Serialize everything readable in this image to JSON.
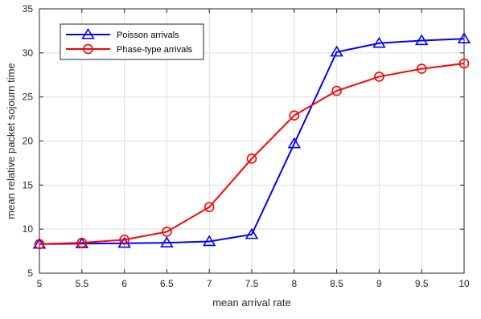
{
  "chart_data": {
    "type": "line",
    "title": "",
    "xlabel": "mean arrival rate",
    "ylabel": "mean relative packet sojourn time",
    "xlim": [
      5,
      10
    ],
    "ylim": [
      5,
      35
    ],
    "x_ticks": [
      5,
      5.5,
      6,
      6.5,
      7,
      7.5,
      8,
      8.5,
      9,
      9.5,
      10
    ],
    "x_tick_labels": [
      "5",
      "5.5",
      "6",
      "6.5",
      "7",
      "7.5",
      "8",
      "8.5",
      "9",
      "9.5",
      "10"
    ],
    "y_ticks": [
      5,
      10,
      15,
      20,
      25,
      30,
      35
    ],
    "y_tick_labels": [
      "5",
      "10",
      "15",
      "20",
      "25",
      "30",
      "35"
    ],
    "grid": true,
    "legend_position": "top-left",
    "x": [
      5,
      5.5,
      6,
      6.5,
      7,
      7.5,
      8,
      8.5,
      9,
      9.5,
      10
    ],
    "series": [
      {
        "name": "Poisson arrivals",
        "color": "#0000ff",
        "marker": "triangle",
        "values": [
          8.3,
          8.35,
          8.4,
          8.45,
          8.6,
          9.4,
          19.7,
          30.1,
          31.1,
          31.4,
          31.6
        ]
      },
      {
        "name": "Phase-type arrivals",
        "color": "#ff0000",
        "marker": "circle",
        "values": [
          8.3,
          8.45,
          8.8,
          9.7,
          12.5,
          18.0,
          22.9,
          25.7,
          27.3,
          28.2,
          28.8
        ]
      }
    ]
  }
}
